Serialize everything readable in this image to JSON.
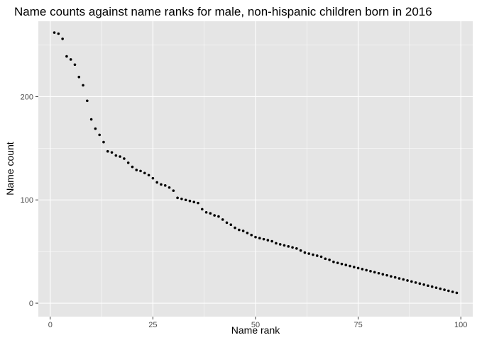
{
  "chart_data": {
    "type": "scatter",
    "title": "Name counts against name ranks for male, non-hispanic children born in 2016",
    "xlabel": "Name rank",
    "ylabel": "Name count",
    "xlim": [
      -2.9,
      102.9
    ],
    "ylim": [
      -13,
      273
    ],
    "xticks": [
      0,
      25,
      50,
      75,
      100
    ],
    "xtick_labels": [
      "0",
      "25",
      "50",
      "75",
      "100"
    ],
    "yticks": [
      0,
      100,
      200
    ],
    "ytick_labels": [
      "0",
      "100",
      "200"
    ],
    "grid": true,
    "legend": "none",
    "colors": {
      "panel": "#e5e5e5",
      "grid": "#ffffff",
      "point": "#000000",
      "tick": "#333333"
    },
    "x": [
      1,
      2,
      3,
      4,
      5,
      6,
      7,
      8,
      9,
      10,
      11,
      12,
      13,
      14,
      15,
      16,
      17,
      18,
      19,
      20,
      21,
      22,
      23,
      24,
      25,
      26,
      27,
      28,
      29,
      30,
      31,
      32,
      33,
      34,
      35,
      36,
      37,
      38,
      39,
      40,
      41,
      42,
      43,
      44,
      45,
      46,
      47,
      48,
      49,
      50,
      51,
      52,
      53,
      54,
      55,
      56,
      57,
      58,
      59,
      60,
      61,
      62,
      63,
      64,
      65,
      66,
      67,
      68,
      69,
      70,
      71,
      72,
      73,
      74,
      75,
      76,
      77,
      78,
      79,
      80,
      81,
      82,
      83,
      84,
      85,
      86,
      87,
      88,
      89,
      90,
      91,
      92,
      93,
      94,
      95,
      96,
      97,
      98,
      99
    ],
    "y": [
      262,
      261,
      256,
      239,
      236,
      231,
      219,
      211,
      196,
      178,
      169,
      163,
      156,
      147,
      146,
      143,
      142,
      140,
      136,
      132,
      129,
      128,
      126,
      124,
      121,
      117,
      115,
      114,
      112,
      109,
      102,
      101,
      100,
      99,
      98,
      97,
      91,
      88,
      87,
      85,
      84,
      81,
      78,
      76,
      73,
      71,
      70,
      68,
      66,
      64,
      63,
      62,
      61,
      60,
      58,
      57,
      56,
      55,
      54,
      53,
      51,
      49,
      48,
      47,
      46,
      45,
      43,
      42,
      40,
      39,
      38,
      37,
      36,
      35,
      34,
      33,
      32,
      31,
      30,
      29,
      28,
      27,
      26,
      25,
      24,
      23,
      22,
      21,
      20,
      19,
      18,
      17,
      16,
      15,
      14,
      13,
      12,
      11,
      10
    ]
  }
}
